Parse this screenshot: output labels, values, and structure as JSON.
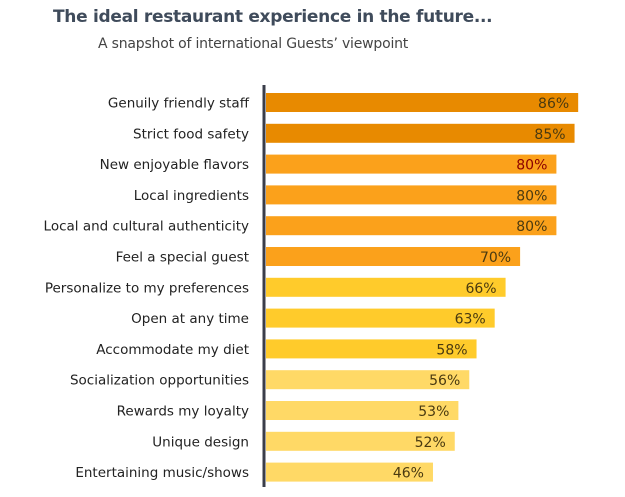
{
  "chart_data": {
    "type": "bar",
    "orientation": "horizontal",
    "title": "The ideal restaurant experience in the future...",
    "subtitle": "A snapshot of international Guests’ viewpoint",
    "categories": [
      "Genuily friendly staff",
      "Strict food safety",
      "New enjoyable flavors",
      "Local ingredients",
      "Local and cultural authenticity",
      "Feel a special guest",
      "Personalize to my preferences",
      "Open at any time",
      "Accommodate my diet",
      "Socialization opportunities",
      "Rewards my loyalty",
      "Unique design",
      "Entertaining music/shows"
    ],
    "values": [
      86,
      85,
      80,
      80,
      80,
      70,
      66,
      63,
      58,
      56,
      53,
      52,
      46
    ],
    "labels": [
      "86%",
      "85%",
      "80%",
      "80%",
      "80%",
      "70%",
      "66%",
      "63%",
      "58%",
      "56%",
      "53%",
      "52%",
      "46%"
    ],
    "bar_colors": [
      "#E88A00",
      "#E88A00",
      "#FBA11B",
      "#FBA11B",
      "#FBA11B",
      "#FBA11B",
      "#FFCB2B",
      "#FFCB2B",
      "#FFCB2B",
      "#FFD966",
      "#FFD966",
      "#FFD966",
      "#FFD966"
    ],
    "label_colors": [
      "#4a3a10",
      "#4a3a10",
      "#8B0000",
      "#4a3a10",
      "#4a3a10",
      "#4a3a10",
      "#4a3a10",
      "#4a3a10",
      "#4a3a10",
      "#4a3a10",
      "#4a3a10",
      "#4a3a10",
      "#4a3a10"
    ],
    "xlim": [
      0,
      100
    ],
    "grid": false,
    "legend": "none"
  }
}
